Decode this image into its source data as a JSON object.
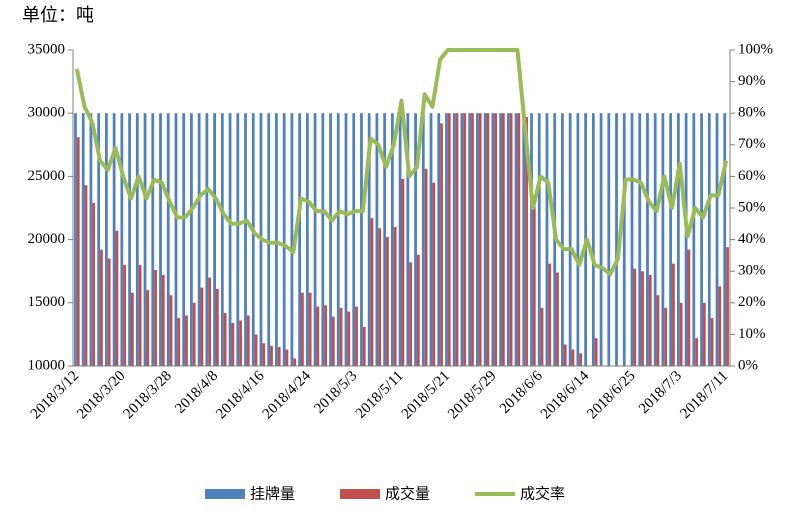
{
  "chart_data": {
    "type": "bar_line",
    "title": "单位：吨",
    "categories": [
      "2018/3/12",
      null,
      null,
      null,
      null,
      null,
      "2018/3/20",
      null,
      null,
      null,
      null,
      null,
      "2018/3/28",
      null,
      null,
      null,
      null,
      null,
      "2018/4/8",
      null,
      null,
      null,
      null,
      null,
      "2018/4/16",
      null,
      null,
      null,
      null,
      null,
      "2018/4/24",
      null,
      null,
      null,
      null,
      null,
      "2018/5/3",
      null,
      null,
      null,
      null,
      null,
      "2018/5/11",
      null,
      null,
      null,
      null,
      null,
      "2018/5/21",
      null,
      null,
      null,
      null,
      null,
      "2018/5/29",
      null,
      null,
      null,
      null,
      null,
      "2018/6/6",
      null,
      null,
      null,
      null,
      null,
      "2018/6/14",
      null,
      null,
      null,
      null,
      null,
      "2018/6/25",
      null,
      null,
      null,
      null,
      null,
      "2018/7/3",
      null,
      null,
      null,
      null,
      null,
      "2018/7/11"
    ],
    "series": [
      {
        "name": "挂牌量",
        "color": "#4f81bd",
        "values": [
          30000,
          30000,
          30000,
          30000,
          30000,
          30000,
          30000,
          30000,
          30000,
          30000,
          30000,
          30000,
          30000,
          30000,
          30000,
          30000,
          30000,
          30000,
          30000,
          30000,
          30000,
          30000,
          30000,
          30000,
          30000,
          30000,
          30000,
          30000,
          30000,
          30000,
          30000,
          30000,
          30000,
          30000,
          30000,
          30000,
          30000,
          30000,
          30000,
          30000,
          30000,
          30000,
          30000,
          30000,
          30000,
          30000,
          30000,
          30000,
          30000,
          30000,
          30000,
          30000,
          30000,
          30000,
          30000,
          30000,
          30000,
          30000,
          30000,
          30000,
          30000,
          30000,
          30000,
          30000,
          30000,
          30000,
          30000,
          30000,
          30000,
          30000,
          30000,
          30000,
          30000,
          30000,
          30000,
          30000,
          30000,
          30000,
          30000,
          30000,
          30000,
          30000,
          30000,
          30000,
          30000
        ]
      },
      {
        "name": "成交量",
        "color": "#c0504d",
        "values": [
          28100,
          24300,
          22900,
          19200,
          18500,
          20700,
          18000,
          15800,
          18000,
          16000,
          17600,
          17200,
          15600,
          13800,
          14000,
          15000,
          16200,
          17000,
          16100,
          14200,
          13400,
          13600,
          14000,
          12500,
          11800,
          11600,
          11500,
          11300,
          10600,
          15800,
          15800,
          14700,
          14800,
          13900,
          14600,
          14300,
          14700,
          13100,
          21700,
          20900,
          20200,
          21000,
          24800,
          18200,
          18800,
          25600,
          24500,
          29200,
          30000,
          30000,
          30000,
          30000,
          30000,
          30000,
          30000,
          30000,
          30000,
          30000,
          29700,
          22600,
          14600,
          18100,
          17400,
          11700,
          11300,
          11000,
          null,
          12200,
          null,
          null,
          null,
          null,
          17700,
          17500,
          17200,
          15600,
          14600,
          18100,
          15000,
          19200,
          12200,
          15000,
          13800,
          16300,
          19400
        ]
      },
      {
        "name": "成交率",
        "color": "#9bbb59",
        "axis": "y2",
        "values": [
          94,
          82,
          77,
          65,
          62,
          69,
          60,
          53,
          60,
          53,
          59,
          58,
          52,
          47,
          47,
          50,
          54,
          56,
          53,
          48,
          45,
          45,
          46,
          42,
          40,
          39,
          39,
          38,
          36,
          53,
          52,
          49,
          49,
          46,
          49,
          48,
          49,
          49,
          72,
          70,
          63,
          70,
          84,
          60,
          63,
          86,
          82,
          97,
          100,
          100,
          100,
          100,
          100,
          100,
          100,
          100,
          100,
          100,
          75,
          50,
          60,
          58,
          40,
          37,
          37,
          32,
          40,
          32,
          31,
          29,
          34,
          59,
          59,
          58,
          52,
          49,
          60,
          50,
          64,
          41,
          50,
          47,
          54,
          54,
          65
        ]
      }
    ],
    "ylim": [
      10000,
      35000
    ],
    "yticks": [
      10000,
      15000,
      20000,
      25000,
      30000,
      35000
    ],
    "y2lim": [
      0,
      100
    ],
    "y2ticks": [
      {
        "value": 0,
        "label": "0%"
      },
      {
        "value": 10,
        "label": "10%"
      },
      {
        "value": 20,
        "label": "20%"
      },
      {
        "value": 30,
        "label": "30%"
      },
      {
        "value": 40,
        "label": "40%"
      },
      {
        "value": 50,
        "label": "50%"
      },
      {
        "value": 60,
        "label": "60%"
      },
      {
        "value": 70,
        "label": "70%"
      },
      {
        "value": 80,
        "label": "80%"
      },
      {
        "value": 90,
        "label": "90%"
      },
      {
        "value": 100,
        "label": "100%"
      }
    ],
    "grid": false,
    "legend": "bottom"
  }
}
